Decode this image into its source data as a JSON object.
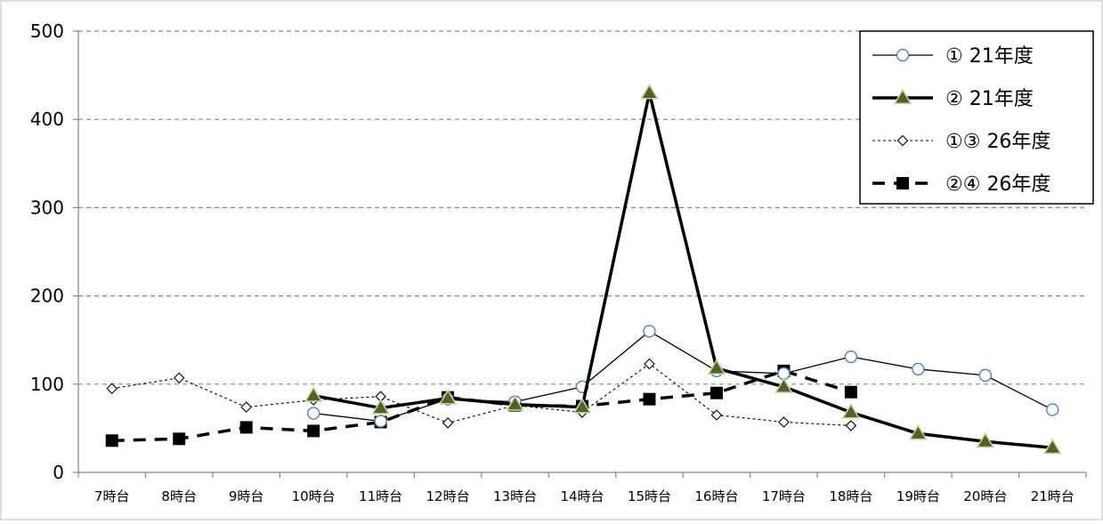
{
  "chart_data": {
    "type": "line",
    "categories": [
      "7時台",
      "8時台",
      "9時台",
      "10時台",
      "11時台",
      "12時台",
      "13時台",
      "14時台",
      "15時台",
      "16時台",
      "17時台",
      "18時台",
      "19時台",
      "20時台",
      "21時台"
    ],
    "y_ticks": [
      0,
      100,
      200,
      300,
      400,
      500
    ],
    "ylim": [
      0,
      500
    ],
    "grid": "horizontal-dashed",
    "legend_position": "top-right",
    "series": [
      {
        "name": "① 21年度",
        "values": [
          null,
          null,
          null,
          67,
          58,
          83,
          80,
          97,
          160,
          115,
          112,
          131,
          117,
          110,
          71
        ],
        "color": "#000000",
        "marker": "circle",
        "marker_fill": "#ffffff",
        "marker_stroke": "#4f81bd",
        "line_style": "solid-thin"
      },
      {
        "name": "② 21年度",
        "values": [
          null,
          null,
          null,
          87,
          73,
          84,
          77,
          74,
          430,
          118,
          97,
          68,
          44,
          35,
          28
        ],
        "color": "#000000",
        "marker": "triangle",
        "marker_fill": "#4f6228",
        "marker_stroke": "#c3d69b",
        "line_style": "solid-thick"
      },
      {
        "name": "①③ 26年度",
        "values": [
          95,
          107,
          74,
          82,
          86,
          56,
          76,
          68,
          123,
          65,
          57,
          53,
          null,
          null,
          null
        ],
        "color": "#000000",
        "marker": "diamond",
        "marker_fill": "#ffffff",
        "marker_stroke": "#000000",
        "line_style": "dotted-thin"
      },
      {
        "name": "②④ 26年度",
        "values": [
          36,
          38,
          51,
          47,
          57,
          85,
          76,
          75,
          83,
          90,
          115,
          91,
          null,
          null,
          null
        ],
        "color": "#000000",
        "marker": "square",
        "marker_fill": "#000000",
        "marker_stroke": "#000000",
        "line_style": "dashed-thick"
      }
    ]
  }
}
